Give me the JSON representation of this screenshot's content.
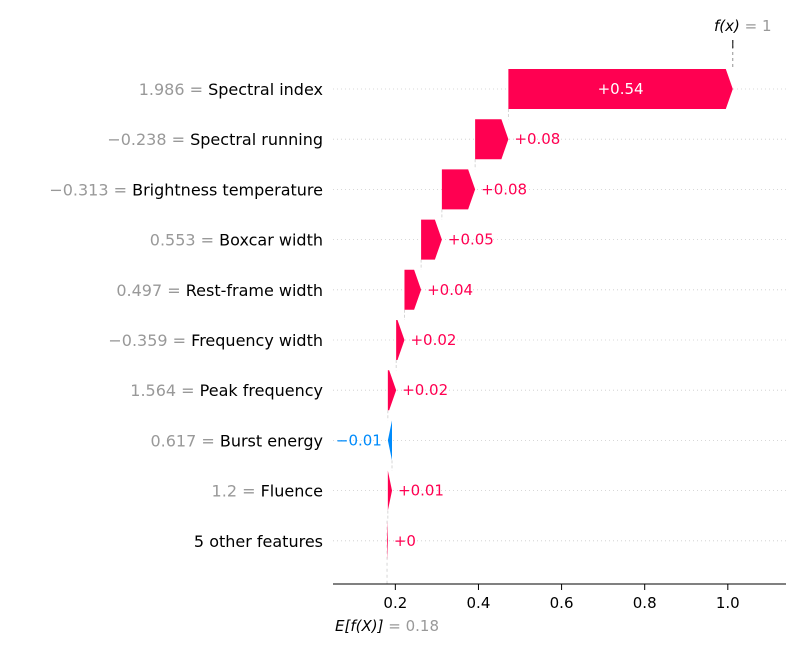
{
  "chart_data": {
    "type": "waterfall",
    "base_value": 0.18,
    "output_value": 1,
    "base_label_main": "E[f(X)]",
    "base_label_value": "= 0.18",
    "output_label_main": "f(x)",
    "output_label_value": "= 1",
    "xlim": [
      0.05,
      1.14
    ],
    "xticks": [
      0.2,
      0.4,
      0.6,
      0.8,
      1.0
    ],
    "xtick_labels": [
      "0.2",
      "0.4",
      "0.6",
      "0.8",
      "1.0"
    ],
    "features": [
      {
        "value_text": "1.986 =",
        "name": "Spectral index",
        "contribution": 0.54,
        "label": "+0.54"
      },
      {
        "value_text": "−0.238 =",
        "name": "Spectral running",
        "contribution": 0.08,
        "label": "+0.08"
      },
      {
        "value_text": "−0.313 =",
        "name": "Brightness temperature",
        "contribution": 0.08,
        "label": "+0.08"
      },
      {
        "value_text": "0.553 =",
        "name": "Boxcar width",
        "contribution": 0.05,
        "label": "+0.05"
      },
      {
        "value_text": "0.497 =",
        "name": "Rest-frame width",
        "contribution": 0.04,
        "label": "+0.04"
      },
      {
        "value_text": "−0.359 =",
        "name": "Frequency width",
        "contribution": 0.02,
        "label": "+0.02"
      },
      {
        "value_text": "1.564 =",
        "name": "Peak frequency",
        "contribution": 0.02,
        "label": "+0.02"
      },
      {
        "value_text": "0.617 =",
        "name": "Burst energy",
        "contribution": -0.01,
        "label": "−0.01"
      },
      {
        "value_text": "1.2 =",
        "name": "Fluence",
        "contribution": 0.01,
        "label": "+0.01"
      },
      {
        "value_text": "",
        "name": "5 other features",
        "contribution": 0.002,
        "label": "+0"
      }
    ],
    "colors": {
      "positive": "#ff0051",
      "negative": "#008bfb",
      "value_text": "#999999",
      "name_text": "#000000",
      "axis": "#000000",
      "gridline": "#cccccc"
    }
  }
}
